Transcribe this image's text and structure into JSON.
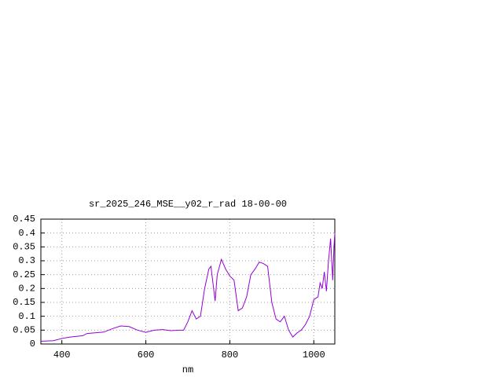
{
  "chart_data": {
    "type": "line",
    "title": "sr_2025_246_MSE__y02_r_rad 18-00-00",
    "x_label": "nm",
    "x": [
      350,
      380,
      400,
      420,
      450,
      460,
      500,
      520,
      540,
      560,
      580,
      600,
      620,
      640,
      660,
      680,
      690,
      700,
      710,
      720,
      730,
      740,
      750,
      755,
      765,
      770,
      780,
      790,
      800,
      810,
      820,
      830,
      840,
      850,
      860,
      870,
      880,
      890,
      900,
      910,
      920,
      930,
      940,
      950,
      960,
      970,
      980,
      990,
      1000,
      1010,
      1015,
      1020,
      1025,
      1030,
      1035,
      1040,
      1045,
      1048,
      1050
    ],
    "series": [
      {
        "name": "sr_2025_246_MSE__y02_r_rad",
        "color": "#9400d3",
        "values": [
          0.01,
          0.012,
          0.02,
          0.025,
          0.03,
          0.038,
          0.043,
          0.055,
          0.065,
          0.063,
          0.05,
          0.042,
          0.05,
          0.052,
          0.048,
          0.05,
          0.05,
          0.08,
          0.12,
          0.09,
          0.1,
          0.2,
          0.27,
          0.28,
          0.155,
          0.25,
          0.305,
          0.27,
          0.245,
          0.23,
          0.12,
          0.13,
          0.17,
          0.25,
          0.27,
          0.295,
          0.29,
          0.28,
          0.15,
          0.09,
          0.08,
          0.1,
          0.05,
          0.025,
          0.04,
          0.05,
          0.07,
          0.1,
          0.16,
          0.17,
          0.22,
          0.2,
          0.26,
          0.19,
          0.3,
          0.38,
          0.23,
          0.35,
          0.4
        ]
      }
    ],
    "xlim": [
      350,
      1050
    ],
    "xticks": [
      400,
      600,
      800,
      1000
    ],
    "ylim": [
      0,
      0.45
    ],
    "yticks": [
      0,
      0.05,
      0.1,
      0.15,
      0.2,
      0.25,
      0.3,
      0.35,
      0.4,
      0.45
    ],
    "grid": true
  }
}
